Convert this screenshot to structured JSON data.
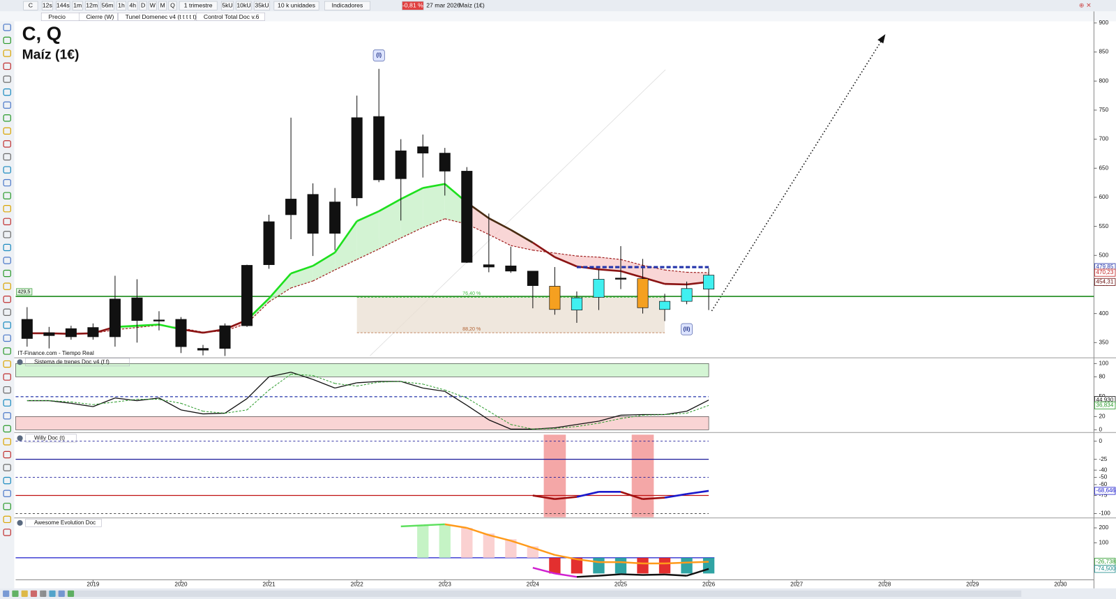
{
  "toolbar": {
    "symbol": "C",
    "timeframes": [
      "12s",
      "144s",
      "1m",
      "12m",
      "56m",
      "1h",
      "4h",
      "D",
      "W",
      "M",
      "Q"
    ],
    "period": "1 trimestre",
    "units": [
      "5kU",
      "10kU",
      "35kU"
    ],
    "units_label": "10 k unidades",
    "indicators": "Indicadores",
    "change": "-0,81 %",
    "date": "27 mar 2026",
    "instrument": "Maíz (1€)"
  },
  "legend": [
    "Precio",
    "Cierre (W)",
    "Tunel Domenec v4 (t t t t t)",
    "Control Total Doc v.6"
  ],
  "source": "IT-Finance.com - Tiempo Real",
  "chart_data": [
    {
      "type": "candlestick",
      "title": "C, Q",
      "subtitle": "Maíz (1€)",
      "x": [
        2018.25,
        2018.5,
        2018.75,
        2019,
        2019.25,
        2019.5,
        2019.75,
        2020,
        2020.25,
        2020.5,
        2020.75,
        2021,
        2021.25,
        2021.5,
        2021.75,
        2022,
        2022.25,
        2022.5,
        2022.75,
        2023,
        2023.25,
        2023.5,
        2023.75,
        2024,
        2024.25,
        2024.5,
        2024.75,
        2025,
        2025.25,
        2025.5,
        2025.75,
        2026
      ],
      "open": [
        390,
        367,
        374,
        376,
        425,
        427,
        389,
        390,
        340,
        379,
        483,
        558,
        597,
        605,
        592,
        737,
        739,
        680,
        687,
        676,
        645,
        484,
        482,
        473,
        447,
        406,
        428,
        461,
        460,
        407,
        421,
        442
      ],
      "high": [
        411,
        377,
        379,
        383,
        465,
        459,
        404,
        394,
        346,
        383,
        484,
        570,
        737,
        624,
        616,
        775,
        821,
        700,
        708,
        685,
        652,
        572,
        515,
        473,
        480,
        438,
        476,
        516,
        494,
        434,
        455,
        478
      ],
      "low": [
        343,
        340,
        355,
        355,
        343,
        350,
        371,
        332,
        328,
        327,
        377,
        477,
        528,
        499,
        509,
        585,
        626,
        560,
        634,
        603,
        487,
        471,
        470,
        409,
        398,
        384,
        406,
        442,
        400,
        387,
        416,
        406
      ],
      "close": [
        357,
        362,
        360,
        360,
        360,
        388,
        387,
        343,
        337,
        340,
        379,
        484,
        570,
        538,
        538,
        599,
        630,
        632,
        676,
        645,
        488,
        480,
        473,
        448,
        407,
        427,
        459,
        459,
        410,
        421,
        443,
        466
      ],
      "colors": [
        "#111",
        "#111",
        "#111",
        "#111",
        "#111",
        "#111",
        "#111",
        "#111",
        "#111",
        "#111",
        "#111",
        "#111",
        "#111",
        "#111",
        "#111",
        "#111",
        "#111",
        "#111",
        "#111",
        "#111",
        "#111",
        "#111",
        "#111",
        "#111",
        "#f5a020",
        "#40f0f0",
        "#40f0f0",
        "#111",
        "#f5a020",
        "#40f0f0",
        "#40f0f0",
        "#40f0f0"
      ],
      "xlim": [
        2018.12,
        2030.38
      ],
      "xticks": [
        2019,
        2020,
        2021,
        2022,
        2023,
        2024,
        2025,
        2026,
        2027,
        2028,
        2029,
        2030
      ],
      "ylim": [
        325,
        915
      ],
      "yticks": [
        350,
        400,
        450,
        500,
        550,
        600,
        650,
        700,
        750,
        800,
        850,
        900
      ],
      "tunnel": {
        "values": [
          366,
          366,
          365,
          366,
          377,
          379,
          381,
          373,
          367,
          373,
          389,
          426,
          469,
          482,
          505,
          559,
          576,
          597,
          616,
          623,
          591,
          564,
          544,
          522,
          497,
          481,
          476,
          473,
          462,
          451,
          450,
          454.31
        ],
        "colors": [
          "#8b1414",
          "#8b1414",
          "#8b1414",
          "#8b1414",
          "#1ee01e",
          "#1ee01e",
          "#1ee01e",
          "#8b1414",
          "#8b1414",
          "#8b1414",
          "#1ee01e",
          "#1ee01e",
          "#1ee01e",
          "#1ee01e",
          "#1ee01e",
          "#1ee01e",
          "#1ee01e",
          "#1ee01e",
          "#1ee01e",
          "#1ee01e",
          "#4a2c12",
          "#4a2c12",
          "#4a2c12",
          "#8b1414",
          "#8b1414",
          "#8b1414",
          "#8b1414",
          "#8b1414",
          "#8b1414",
          "#8b1414",
          "#8b1414",
          "#8b1414"
        ]
      },
      "signal": {
        "values": [
          366,
          366,
          366,
          366,
          372,
          376,
          380,
          375,
          368,
          370,
          383,
          420,
          444,
          456,
          475,
          493,
          511,
          530,
          548,
          563,
          554,
          536,
          517,
          509,
          504,
          499,
          497,
          493,
          483,
          475,
          471,
          470.23
        ],
        "color": "#a02020"
      },
      "levels": [
        {
          "value": 429.5,
          "label": "429,5",
          "color": "#1a8a1a"
        }
      ],
      "price_tags": [
        {
          "value": 479.85,
          "label": "479,85",
          "color": "#2233aa"
        },
        {
          "value": 470.23,
          "label": "470,23",
          "color": "#c02020"
        },
        {
          "value": 454.31,
          "label": "454,31",
          "color": "#6a1010"
        }
      ],
      "resistance_x": [
        2024.5,
        2026
      ],
      "fib": {
        "x": [
          2022,
          2025.5
        ],
        "levels": [
          {
            "value": 428,
            "label": "76,40 %"
          },
          {
            "value": 367,
            "label": "88,20 %"
          }
        ]
      },
      "annotations": [
        {
          "text": "(I)",
          "x": 2022.25,
          "y": 844
        },
        {
          "text": "(II)",
          "x": 2025.75,
          "y": 373
        }
      ]
    },
    {
      "type": "line",
      "title": "Sistema de trenes Doc v4 (f f)",
      "ylim": [
        -2,
        106.5
      ],
      "yticks": [
        0,
        20,
        50,
        80,
        100
      ],
      "x": [
        2018.25,
        2018.5,
        2018.75,
        2019,
        2019.25,
        2019.5,
        2019.75,
        2020,
        2020.25,
        2020.5,
        2020.75,
        2021,
        2021.25,
        2021.5,
        2021.75,
        2022,
        2022.25,
        2022.5,
        2022.75,
        2023,
        2023.25,
        2023.5,
        2023.75,
        2024,
        2024.25,
        2024.5,
        2024.75,
        2025,
        2025.25,
        2025.5,
        2025.75,
        2026
      ],
      "series": [
        {
          "color": "#111",
          "dashed": false,
          "values": [
            44,
            44,
            40,
            35,
            48,
            44,
            48,
            30,
            24,
            25,
            47,
            80,
            87,
            76,
            63,
            71,
            73,
            73,
            63,
            58,
            37,
            15,
            1,
            1,
            3,
            8,
            13,
            22,
            23,
            23,
            28,
            44.93
          ],
          "value_labels": [
            null,
            null,
            null,
            null,
            null,
            null,
            null,
            null,
            null,
            null,
            null,
            null,
            null,
            null,
            null,
            null,
            null,
            null,
            null,
            null,
            null,
            null,
            null,
            null,
            null,
            null,
            null,
            null,
            null,
            null,
            null,
            "44,930"
          ]
        },
        {
          "color": "#2a9a2a",
          "dashed": true,
          "values": [
            44,
            44,
            42,
            38,
            42,
            46,
            46,
            40,
            28,
            25,
            30,
            60,
            84,
            82,
            70,
            66,
            72,
            73,
            69,
            60,
            48,
            28,
            8,
            1,
            2,
            5,
            10,
            17,
            22,
            23,
            25,
            36.834
          ],
          "value_labels": [
            null,
            null,
            null,
            null,
            null,
            null,
            null,
            null,
            null,
            null,
            null,
            null,
            null,
            null,
            null,
            null,
            null,
            null,
            null,
            null,
            null,
            null,
            null,
            null,
            null,
            null,
            null,
            null,
            null,
            null,
            null,
            "36,834"
          ]
        }
      ]
    },
    {
      "type": "line",
      "title": "Willy Doc (t)",
      "ylim": [
        -106,
        10
      ],
      "yticks": [
        0,
        -25,
        -40,
        -50,
        -60,
        -75,
        -100
      ],
      "x": [
        2018.25,
        2018.5,
        2018.75,
        2019,
        2019.25,
        2019.5,
        2019.75,
        2020,
        2020.25,
        2020.5,
        2020.75,
        2021,
        2021.25,
        2021.5,
        2021.75,
        2022,
        2022.25,
        2022.5,
        2022.75,
        2023,
        2023.25,
        2023.5,
        2023.75,
        2024,
        2024.25,
        2024.5,
        2024.75,
        2025,
        2025.25,
        2025.5,
        2025.75,
        2026
      ],
      "highlights": [
        2024.25,
        2025.25
      ],
      "levels": [
        {
          "value": 0,
          "color": "#1a1a99",
          "dashed": true
        },
        {
          "value": -25,
          "color": "#1a1a99",
          "dashed": false
        },
        {
          "value": -50,
          "color": "#1a1a99",
          "dashed": true
        },
        {
          "value": -75,
          "color": "#c01010",
          "dashed": false
        },
        {
          "value": -100,
          "color": "#333",
          "dashed": true
        }
      ],
      "series": [
        {
          "values": [
            null,
            null,
            null,
            null,
            null,
            null,
            null,
            null,
            null,
            null,
            null,
            null,
            null,
            null,
            null,
            null,
            null,
            null,
            null,
            null,
            null,
            null,
            null,
            -75,
            -80,
            -77,
            -70,
            -70,
            -80,
            -78,
            -73,
            -68.646
          ],
          "colors": [
            null,
            null,
            null,
            null,
            null,
            null,
            null,
            null,
            null,
            null,
            null,
            null,
            null,
            null,
            null,
            null,
            null,
            null,
            null,
            null,
            null,
            null,
            null,
            "#a01010",
            "#a01010",
            "#1a1acc",
            "#1a1acc",
            "#a01010",
            "#a01010",
            "#1a1acc",
            "#1a1acc",
            null
          ],
          "value_labels": [
            null,
            null,
            null,
            null,
            null,
            null,
            null,
            null,
            null,
            null,
            null,
            null,
            null,
            null,
            null,
            null,
            null,
            null,
            null,
            null,
            null,
            null,
            null,
            null,
            null,
            null,
            null,
            null,
            null,
            null,
            null,
            "-68,646"
          ]
        }
      ]
    },
    {
      "type": "bar",
      "title": "Awesome Evolution Doc",
      "ylim": [
        -133,
        262
      ],
      "yticks": [
        100,
        200
      ],
      "x": [
        2018.25,
        2018.5,
        2018.75,
        2019,
        2019.25,
        2019.5,
        2019.75,
        2020,
        2020.25,
        2020.5,
        2020.75,
        2021,
        2021.25,
        2021.5,
        2021.75,
        2022,
        2022.25,
        2022.5,
        2022.75,
        2023,
        2023.25,
        2023.5,
        2023.75,
        2024,
        2024.25,
        2024.5,
        2024.75,
        2025,
        2025.25,
        2025.5,
        2025.75,
        2026
      ],
      "values": [
        null,
        null,
        null,
        null,
        null,
        null,
        null,
        null,
        null,
        null,
        null,
        null,
        null,
        null,
        null,
        null,
        null,
        null,
        220,
        224,
        200,
        162,
        124,
        76,
        -105,
        -105,
        -105,
        -105,
        -105,
        -105,
        -105,
        -105
      ],
      "colors": [
        null,
        null,
        null,
        null,
        null,
        null,
        null,
        null,
        null,
        null,
        null,
        null,
        null,
        null,
        null,
        null,
        null,
        null,
        "#bff2bf",
        "#bff2bf",
        "#f9cccc",
        "#f9cccc",
        "#f9cccc",
        "#f9cccc",
        "#e01818",
        "#e01818",
        "#1a9a9a",
        "#1a9a9a",
        "#e01818",
        "#e01818",
        "#1a9a9a",
        "#1a9a9a"
      ],
      "levels": [
        {
          "value": 0,
          "color": "#1a1acc"
        }
      ],
      "series": [
        {
          "values": [
            null,
            null,
            null,
            null,
            null,
            null,
            null,
            null,
            null,
            null,
            null,
            null,
            null,
            null,
            null,
            null,
            null,
            210,
            217,
            224,
            200,
            152,
            114,
            67,
            19,
            -10,
            -29,
            -29,
            -38,
            -38,
            -32,
            -26.738
          ],
          "colors": [
            null,
            null,
            null,
            null,
            null,
            null,
            null,
            "",
            "",
            "",
            "",
            "",
            "",
            "",
            "",
            "",
            "",
            "#5ee05e",
            "#5ee05e",
            "#ff9a1a",
            "#ff9a1a",
            "#ff9a1a",
            "#ff9a1a",
            "#ff9a1a",
            "#ff9a1a",
            "#ff9a1a",
            "#ff9a1a",
            "#ff9a1a",
            "#ff9a1a",
            "#ff9a1a",
            "#ff9a1a",
            null
          ],
          "value_labels": [
            null,
            null,
            null,
            null,
            null,
            null,
            null,
            null,
            null,
            null,
            null,
            null,
            null,
            null,
            null,
            null,
            null,
            null,
            null,
            null,
            null,
            null,
            null,
            null,
            null,
            null,
            null,
            null,
            null,
            null,
            null,
            "-26,738"
          ]
        },
        {
          "values": [
            null,
            null,
            null,
            null,
            null,
            null,
            null,
            null,
            null,
            null,
            null,
            null,
            null,
            null,
            null,
            null,
            null,
            null,
            null,
            null,
            null,
            null,
            null,
            -67,
            -105,
            -128,
            -120,
            -110,
            -115,
            -112,
            -120,
            -74.5
          ],
          "colors": [
            null,
            null,
            null,
            null,
            null,
            null,
            null,
            null,
            null,
            null,
            null,
            null,
            null,
            null,
            null,
            null,
            null,
            null,
            null,
            null,
            null,
            null,
            null,
            "#d020d0",
            "#d020d0",
            "#111",
            "#111",
            "#111",
            "#111",
            "#111",
            "#111",
            null
          ],
          "value_labels": [
            null,
            null,
            null,
            null,
            null,
            null,
            null,
            null,
            null,
            null,
            null,
            null,
            null,
            null,
            null,
            null,
            null,
            null,
            null,
            null,
            null,
            null,
            null,
            null,
            null,
            null,
            null,
            null,
            null,
            null,
            null,
            "-74,500"
          ]
        }
      ]
    }
  ]
}
